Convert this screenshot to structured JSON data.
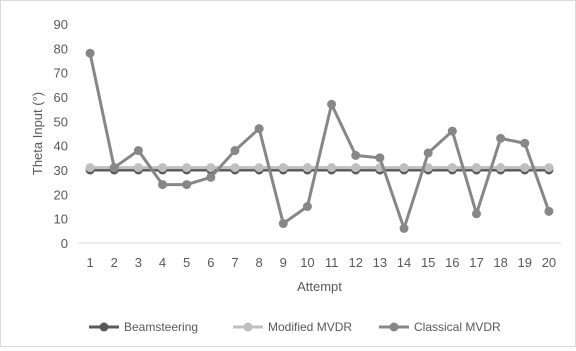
{
  "chart_data": {
    "type": "line",
    "title": "",
    "xlabel": "Attempt",
    "ylabel": "Theta Input (°)",
    "categories": [
      "1",
      "2",
      "3",
      "4",
      "5",
      "6",
      "7",
      "8",
      "9",
      "10",
      "11",
      "12",
      "13",
      "14",
      "15",
      "16",
      "17",
      "18",
      "19",
      "20"
    ],
    "ylim": [
      0,
      90
    ],
    "yticks": [
      0,
      10,
      20,
      30,
      40,
      50,
      60,
      70,
      80,
      90
    ],
    "grid": false,
    "legend_position": "bottom",
    "series": [
      {
        "name": "Beamsteering",
        "color": "#595959",
        "values": [
          30,
          30,
          30,
          30,
          30,
          30,
          30,
          30,
          30,
          30,
          30,
          30,
          30,
          30,
          30,
          30,
          30,
          30,
          30,
          30
        ]
      },
      {
        "name": "Modified MVDR",
        "color": "#bfbfbf",
        "values": [
          31,
          31,
          31,
          31,
          31,
          31,
          31,
          31,
          31,
          31,
          31,
          31,
          31,
          31,
          31,
          31,
          31,
          31,
          31,
          31
        ]
      },
      {
        "name": "Classical MVDR",
        "color": "#878787",
        "values": [
          78,
          31,
          38,
          24,
          24,
          27,
          38,
          47,
          8,
          15,
          57,
          36,
          35,
          6,
          37,
          46,
          12,
          43,
          41,
          13
        ]
      }
    ]
  }
}
